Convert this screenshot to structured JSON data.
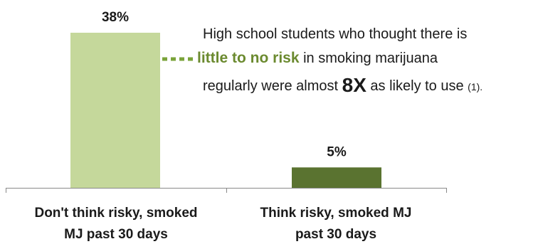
{
  "chart_data": {
    "type": "bar",
    "categories": [
      "Don't think risky, smoked MJ past 30 days",
      "Think risky, smoked MJ past 30 days"
    ],
    "category_label_lines": [
      [
        "Don't think risky, smoked",
        "MJ past 30 days"
      ],
      [
        "Think risky, smoked MJ",
        "past 30 days"
      ]
    ],
    "values": [
      38,
      5
    ],
    "data_labels": [
      "38%",
      "5%"
    ],
    "bar_colors": [
      "#c5d89b",
      "#5a7330"
    ],
    "title": "",
    "xlabel": "",
    "ylabel": "",
    "ylim": [
      0,
      38
    ],
    "grid": false,
    "legend": "none"
  },
  "annotation": {
    "line1": "High school students who thought there is",
    "line2_bold": "little to no risk",
    "line2_rest": " in smoking marijuana",
    "line3_start": "regularly were almost ",
    "line3_big": "8X",
    "line3_mid": " as likely to use ",
    "line3_ref": "(1).",
    "connector_color": "#7aa33a",
    "accent_color": "#6b8a2f"
  }
}
